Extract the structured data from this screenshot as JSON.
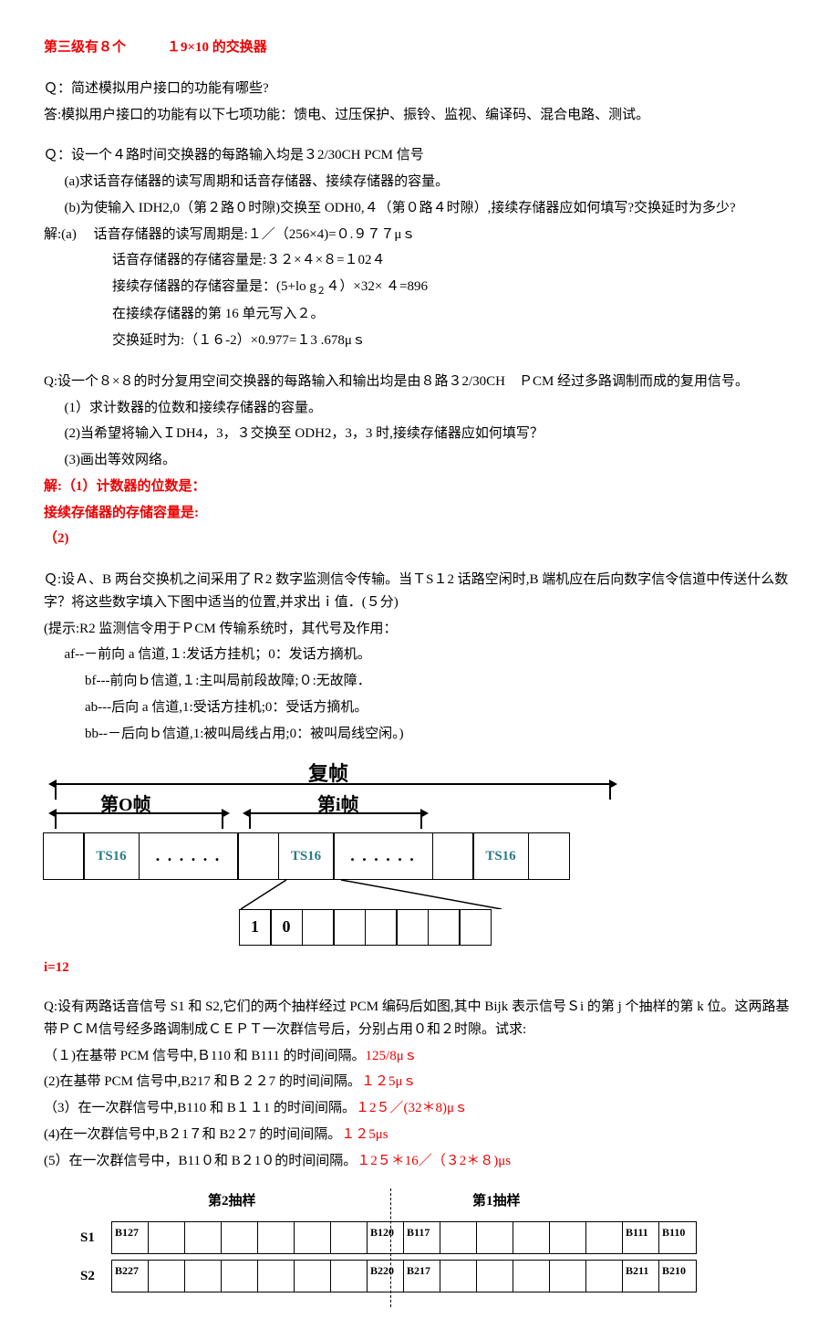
{
  "header_red": "第三级有８个　　　１9×10 的交换器",
  "q1": {
    "q": "Ｑ：简述模拟用户接口的功能有哪些?",
    "a": "答:模拟用户接口的功能有以下七项功能：馈电、过压保护、振铃、监视、编译码、混合电路、测试。"
  },
  "q2": {
    "q": "Ｑ：设一个４路时间交换器的每路输入均是３2/30CH PCM 信号",
    "a1": "(a)求话音存储器的读写周期和话音存储器、接续存储器的容量。",
    "a2": "(b)为使输入 IDH2,0（第２路０时隙)交换至 ODH0,４（第０路４时隙）,接续存储器应如何填写?交换延时为多少?",
    "s1": "解:(a)　 话音存储器的读写周期是:１／（256×4)=０.９７７μｓ",
    "s2": "话音存储器的存储容量是:３２×４×８=１02４",
    "s3_pre": "接续存储器的存储容量是：(5+lo g",
    "s3_sub": "２",
    "s3_post": "４）×32× ４=896",
    "s4": "在接续存储器的第 16 单元写入２。",
    "s5": "交换延时为:（１６-2）×0.977=１3 .678μｓ"
  },
  "q3": {
    "q": "Q:设一个８×８的时分复用空间交换器的每路输入和输出均是由８路３2/30CH　ＰCM 经过多路调制而成的复用信号。",
    "l1": "(1）求计数器的位数和接续存储器的容量。",
    "l2": "(2)当希望将输入ＩDH4，3，３交换至 ODH2，3，3 时,接续存储器应如何填写？",
    "l3": "(3)画出等效网络。",
    "ans1": "解:（1）计数器的位数是：",
    "ans2": "接续存储器的存储容量是:",
    "ans3": "（2)"
  },
  "q4": {
    "q1": "Ｑ:设Ａ、B 两台交换机之间采用了Ｒ2 数字监测信令传输。当ＴS１2 话路空闲时,B 端机应在后向数字信令信道中传送什么数字？将这些数字填入下图中适当的位置,并求出ｉ值．(５分)",
    "hint": "(提示:R2 监测信令用于ＰCM 传输系统时，其代号及作用：",
    "af": "af--－前向 a 信道,１:发话方挂机；0：发话方摘机。",
    "bf": "bf---前向ｂ信道,１:主叫局前段故障;０:无故障．",
    "ab": "ab---后向 a 信道,1:受话方挂机;0：受话方摘机。",
    "bb": "bb--－后向ｂ信道,1:被叫局线占用;0：被叫局线空闲。)"
  },
  "frame": {
    "multiframe": "复帧",
    "frame0": "第O帧",
    "framei": "第i帧",
    "ts16": "TS16",
    "dots": ". . . . . .",
    "bit1": "1",
    "bit0": "0",
    "ival": "i=12"
  },
  "q5": {
    "q1": "Q:设有两路话音信号 S1 和 S2,它们的两个抽样经过 PCM 编码后如图,其中 Bijk 表示信号Ｓi 的第 j 个抽样的第 k 位。这两路基带ＰＣＭ信号经多路调制成ＣＥＰＴ一次群信号后，分别占用０和２时隙。试求:",
    "l1": "（１)在基带 PCM 信号中,Ｂ110 和 B111 的时间间隔。",
    "a1": "125/8μｓ",
    "l2": "(2)在基带 PCM 信号中,B217 和Ｂ２２7 的时间间隔。",
    "a2": "１２5μｓ",
    "l3": "（3）在一次群信号中,B110 和 B１１1 的时间间隔。",
    "a3": "１2５／(32＊8)μｓ",
    "l4": "(4)在一次群信号中,B２1７和 B2２7 的时间间隔。",
    "a4": "１２5μs",
    "l5": "(5）在一次群信号中，B11０和 B２1０的时间间隔。",
    "a5": "１2５＊16／（３2＊８)μs"
  },
  "sample": {
    "h2": "第2抽样",
    "h1": "第1抽样",
    "s1": "S1",
    "s2": "S2",
    "r1": [
      "B127",
      "",
      "",
      "",
      "",
      "",
      "",
      "B120",
      "B117",
      "",
      "",
      "",
      "",
      "",
      "B111",
      "B110"
    ],
    "r2": [
      "B227",
      "",
      "",
      "",
      "",
      "",
      "",
      "B220",
      "B217",
      "",
      "",
      "",
      "",
      "",
      "B211",
      "B210"
    ]
  }
}
